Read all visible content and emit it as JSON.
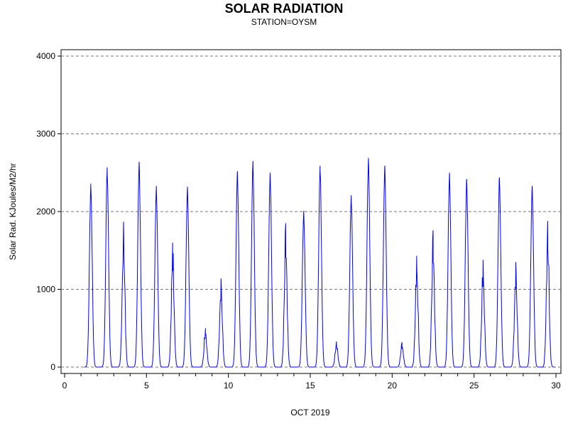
{
  "chart_data": {
    "type": "line",
    "title": "SOLAR RADIATION",
    "subtitle": "STATION=OYSM",
    "xlabel": "OCT 2019",
    "ylabel": "Solar Rad. KJoules/M2/hr",
    "xlim": [
      0,
      30
    ],
    "ylim": [
      0,
      4000
    ],
    "x_ticks": [
      0,
      5,
      10,
      15,
      20,
      25,
      30
    ],
    "y_ticks": [
      0,
      1000,
      2000,
      3000,
      4000
    ],
    "grid": "horizontal-dashed",
    "line_color": "#0000ff",
    "series": [
      {
        "daily_peak_x": [
          1.6,
          2.6,
          3.6,
          4.55,
          5.6,
          6.6,
          7.5,
          8.6,
          9.55,
          10.55,
          11.5,
          12.55,
          13.5,
          14.6,
          15.6,
          16.6,
          17.5,
          18.55,
          19.55,
          20.6,
          21.5,
          22.5,
          23.5,
          24.55,
          25.55,
          26.55,
          27.55,
          28.55,
          29.5
        ],
        "daily_peak_y": [
          2360,
          2570,
          1870,
          2640,
          2330,
          1600,
          2320,
          500,
          1140,
          2520,
          2650,
          2500,
          1850,
          2010,
          2590,
          330,
          2210,
          2690,
          2590,
          320,
          1430,
          1760,
          2500,
          2420,
          1380,
          2440,
          1350,
          2330,
          1880
        ]
      }
    ]
  }
}
